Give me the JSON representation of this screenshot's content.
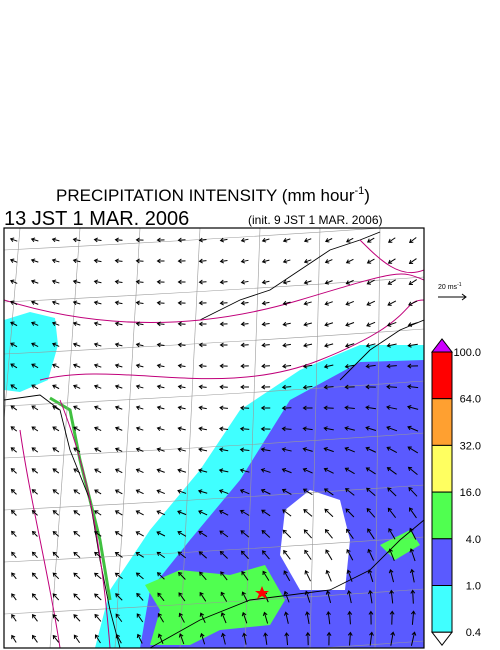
{
  "header": {
    "title_main": "PRECIPITATION INTENSITY (mm hour",
    "title_exp": "-1",
    "title_close": ")",
    "time": "13 JST 1 MAR. 2006",
    "init": "(init. 9 JST 1 MAR. 2006)"
  },
  "wind_scale": {
    "label": "20 ms",
    "exp": "-1"
  },
  "colorbar": {
    "labels": [
      "100.0",
      "64.0",
      "32.0",
      "16.0",
      "4.0",
      "1.0",
      "0.4"
    ],
    "colors": [
      "#cc00ff",
      "#ff0000",
      "#ffa030",
      "#ffff60",
      "#50ff50",
      "#5a5aff",
      "#40ffff",
      "#ffffff"
    ]
  }
}
